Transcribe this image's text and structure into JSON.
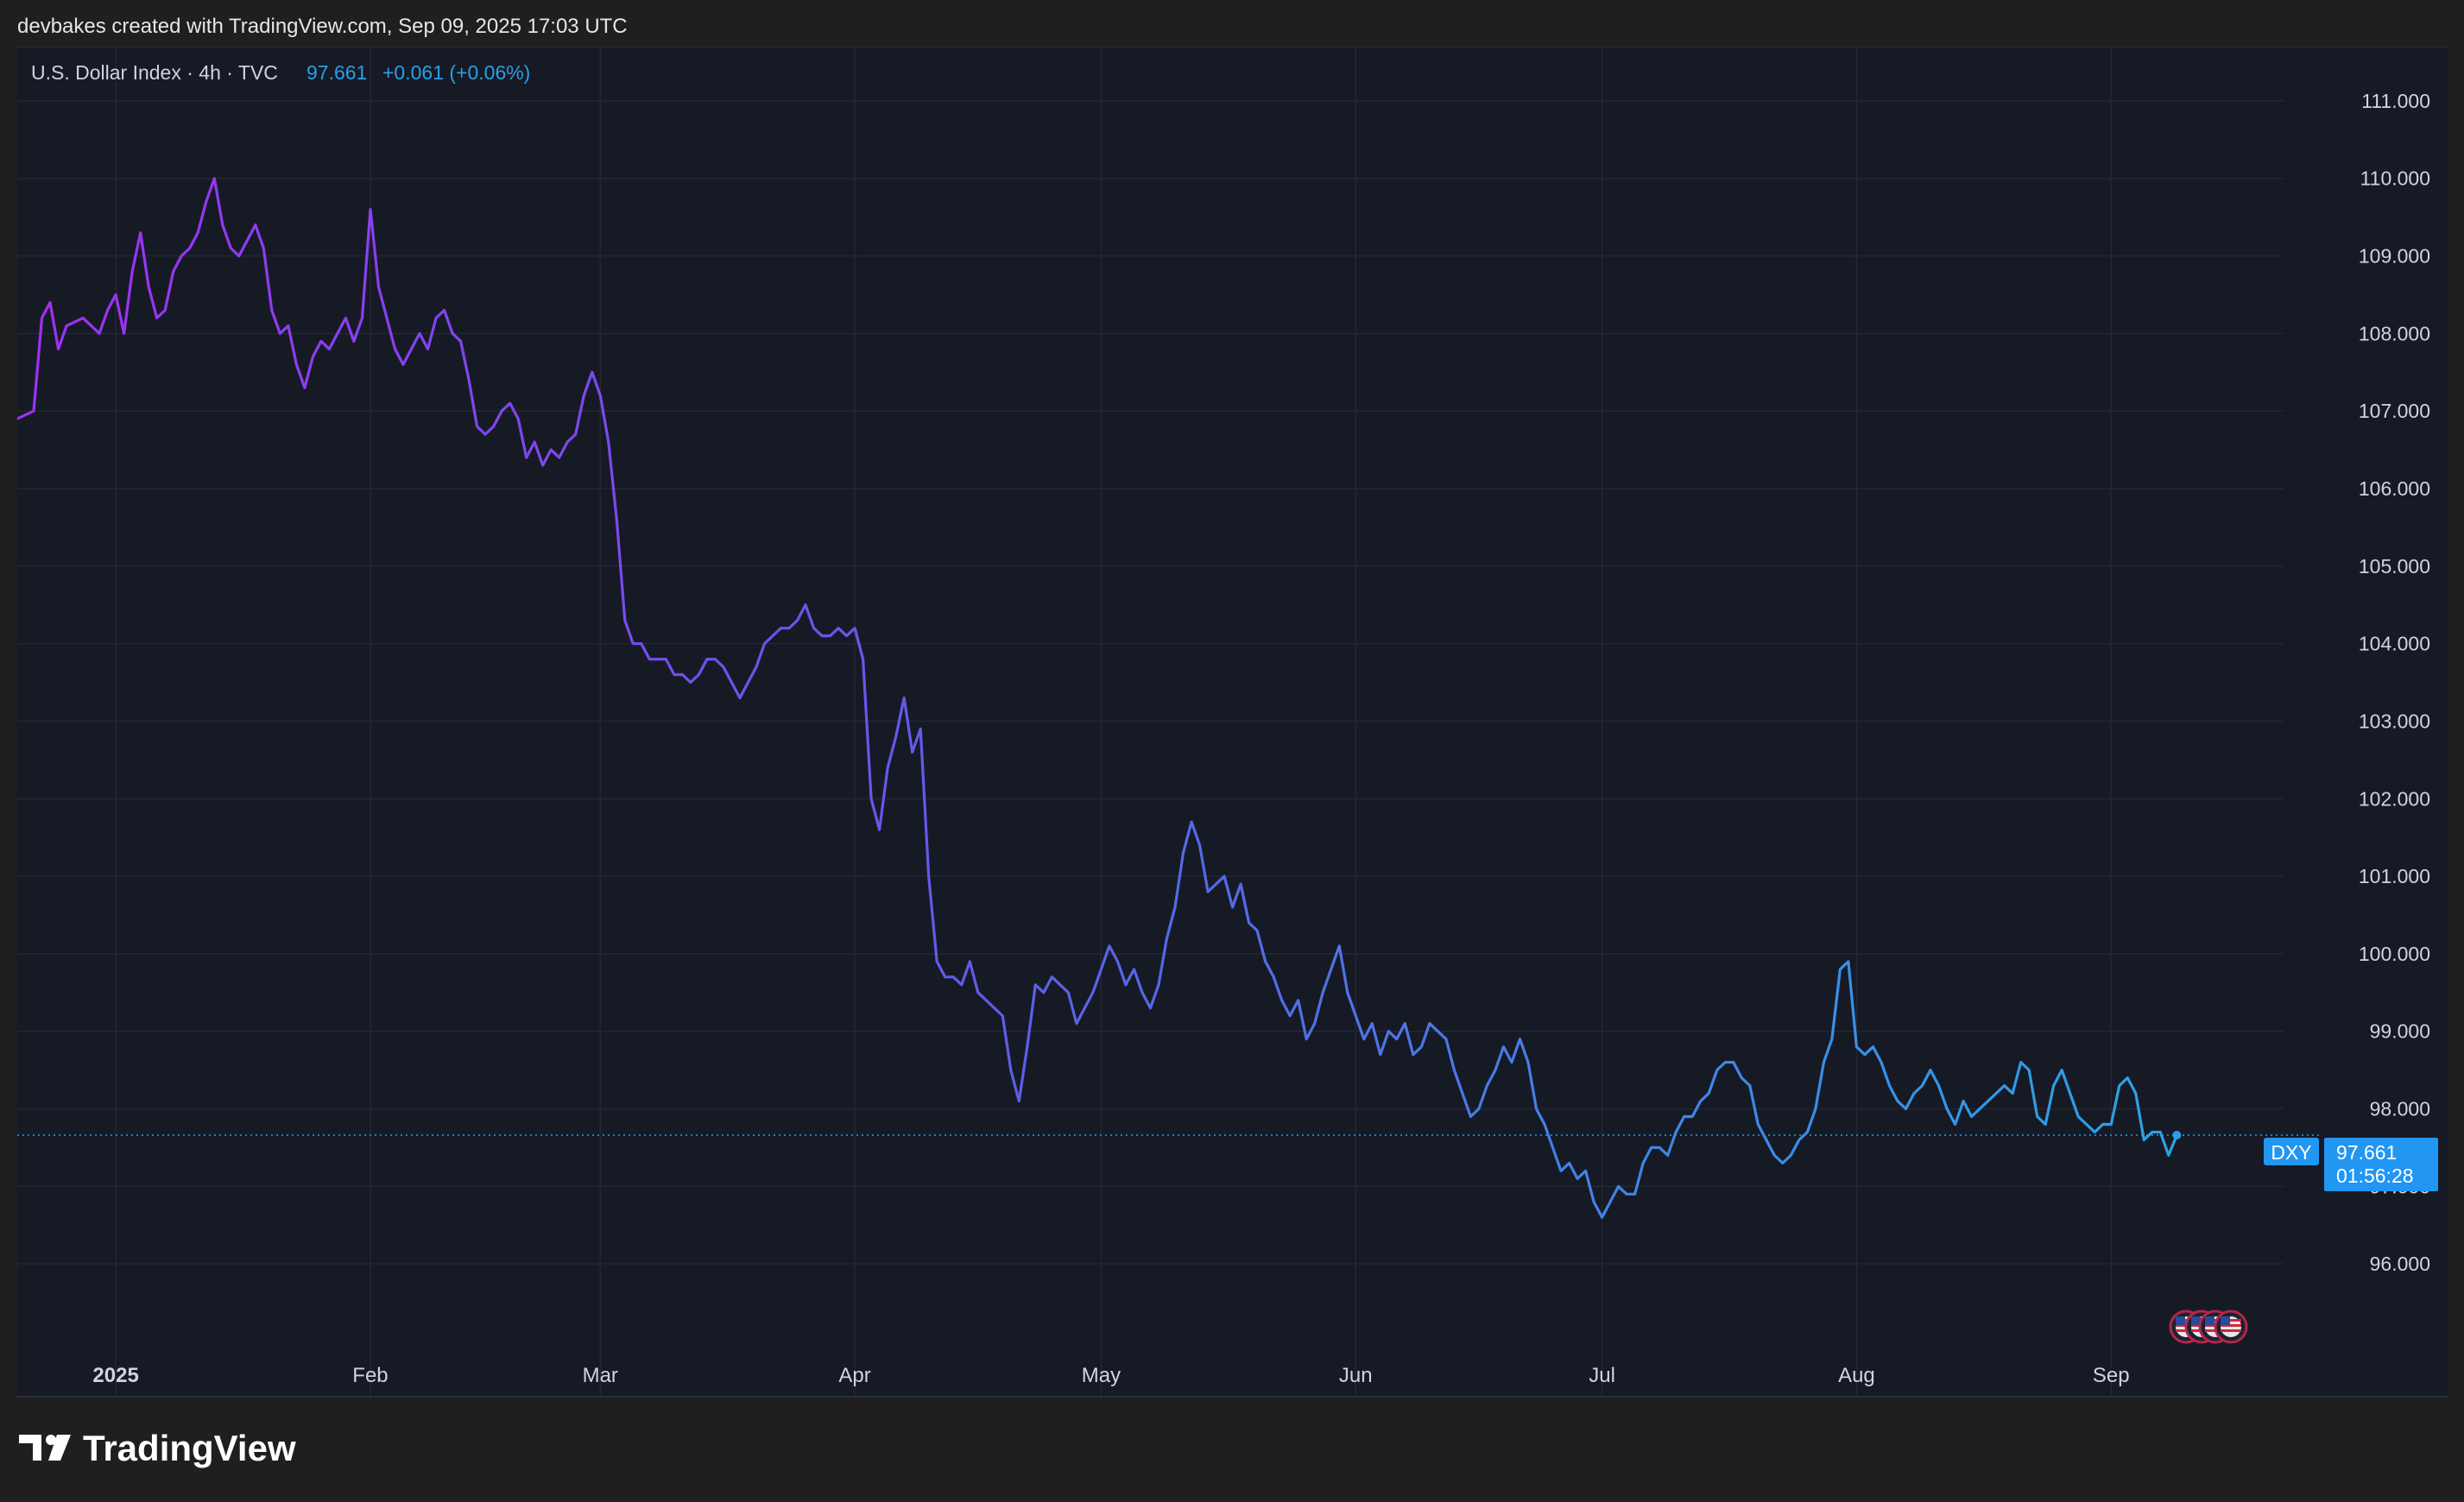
{
  "header": {
    "credit": "devbakes created with TradingView.com, Sep 09, 2025 17:03 UTC"
  },
  "legend": {
    "symbol": "U.S. Dollar Index · 4h · TVC",
    "last": "97.661",
    "change": "+0.061 (+0.06%)"
  },
  "price_tag": {
    "ticker": "DXY",
    "price": "97.661",
    "countdown": "01:56:28"
  },
  "brand": {
    "name": "TradingView"
  },
  "colors": {
    "page_bg": "#1f1f1f",
    "chart_bg": "#161a25",
    "grid": "#232733",
    "text": "#d1d4dc",
    "accent": "#2a9fe8",
    "line_start": "#a12ff4",
    "line_mid": "#5e5de8",
    "line_end": "#2aa3e6"
  },
  "chart_data": {
    "type": "line",
    "title": "U.S. Dollar Index · 4h · TVC",
    "y_axis_side": "right",
    "ylim": [
      95.0,
      111.7
    ],
    "yticks": [
      96,
      97,
      98,
      99,
      100,
      101,
      102,
      103,
      104,
      105,
      106,
      107,
      108,
      109,
      110,
      111
    ],
    "ytick_labels": [
      "96.000",
      "97.000",
      "98.000",
      "99.000",
      "100.000",
      "101.000",
      "102.000",
      "103.000",
      "104.000",
      "105.000",
      "106.000",
      "107.000",
      "108.000",
      "109.000",
      "110.000",
      "111.000"
    ],
    "xlim": [
      "2024-12-20",
      "2025-09-22"
    ],
    "xticks": [
      "2025-01-01",
      "2025-02-01",
      "2025-03-01",
      "2025-04-01",
      "2025-05-01",
      "2025-06-01",
      "2025-07-01",
      "2025-08-01",
      "2025-09-01"
    ],
    "xtick_labels": [
      "2025",
      "Feb",
      "Mar",
      "Apr",
      "May",
      "Jun",
      "Jul",
      "Aug",
      "Sep"
    ],
    "grid": true,
    "last_value": 97.661,
    "series": [
      {
        "points": [
          [
            "2024-12-20",
            106.9
          ],
          [
            "2024-12-22",
            107.0
          ],
          [
            "2024-12-23",
            108.2
          ],
          [
            "2024-12-24",
            108.4
          ],
          [
            "2024-12-25",
            107.8
          ],
          [
            "2024-12-26",
            108.1
          ],
          [
            "2024-12-28",
            108.2
          ],
          [
            "2024-12-30",
            108.0
          ],
          [
            "2024-12-31",
            108.3
          ],
          [
            "2025-01-01",
            108.5
          ],
          [
            "2025-01-02",
            108.0
          ],
          [
            "2025-01-03",
            108.8
          ],
          [
            "2025-01-04",
            109.3
          ],
          [
            "2025-01-05",
            108.6
          ],
          [
            "2025-01-06",
            108.2
          ],
          [
            "2025-01-07",
            108.3
          ],
          [
            "2025-01-08",
            108.8
          ],
          [
            "2025-01-09",
            109.0
          ],
          [
            "2025-01-10",
            109.1
          ],
          [
            "2025-01-11",
            109.3
          ],
          [
            "2025-01-12",
            109.7
          ],
          [
            "2025-01-13",
            110.0
          ],
          [
            "2025-01-14",
            109.4
          ],
          [
            "2025-01-15",
            109.1
          ],
          [
            "2025-01-16",
            109.0
          ],
          [
            "2025-01-17",
            109.2
          ],
          [
            "2025-01-18",
            109.4
          ],
          [
            "2025-01-19",
            109.1
          ],
          [
            "2025-01-20",
            108.3
          ],
          [
            "2025-01-21",
            108.0
          ],
          [
            "2025-01-22",
            108.1
          ],
          [
            "2025-01-23",
            107.6
          ],
          [
            "2025-01-24",
            107.3
          ],
          [
            "2025-01-25",
            107.7
          ],
          [
            "2025-01-26",
            107.9
          ],
          [
            "2025-01-27",
            107.8
          ],
          [
            "2025-01-28",
            108.0
          ],
          [
            "2025-01-29",
            108.2
          ],
          [
            "2025-01-30",
            107.9
          ],
          [
            "2025-01-31",
            108.2
          ],
          [
            "2025-02-01",
            109.6
          ],
          [
            "2025-02-02",
            108.6
          ],
          [
            "2025-02-03",
            108.2
          ],
          [
            "2025-02-04",
            107.8
          ],
          [
            "2025-02-05",
            107.6
          ],
          [
            "2025-02-06",
            107.8
          ],
          [
            "2025-02-07",
            108.0
          ],
          [
            "2025-02-08",
            107.8
          ],
          [
            "2025-02-09",
            108.2
          ],
          [
            "2025-02-10",
            108.3
          ],
          [
            "2025-02-11",
            108.0
          ],
          [
            "2025-02-12",
            107.9
          ],
          [
            "2025-02-13",
            107.4
          ],
          [
            "2025-02-14",
            106.8
          ],
          [
            "2025-02-15",
            106.7
          ],
          [
            "2025-02-16",
            106.8
          ],
          [
            "2025-02-17",
            107.0
          ],
          [
            "2025-02-18",
            107.1
          ],
          [
            "2025-02-19",
            106.9
          ],
          [
            "2025-02-20",
            106.4
          ],
          [
            "2025-02-21",
            106.6
          ],
          [
            "2025-02-22",
            106.3
          ],
          [
            "2025-02-23",
            106.5
          ],
          [
            "2025-02-24",
            106.4
          ],
          [
            "2025-02-25",
            106.6
          ],
          [
            "2025-02-26",
            106.7
          ],
          [
            "2025-02-27",
            107.2
          ],
          [
            "2025-02-28",
            107.5
          ],
          [
            "2025-03-01",
            107.2
          ],
          [
            "2025-03-02",
            106.6
          ],
          [
            "2025-03-03",
            105.6
          ],
          [
            "2025-03-04",
            104.3
          ],
          [
            "2025-03-05",
            104.0
          ],
          [
            "2025-03-06",
            104.0
          ],
          [
            "2025-03-07",
            103.8
          ],
          [
            "2025-03-08",
            103.8
          ],
          [
            "2025-03-09",
            103.8
          ],
          [
            "2025-03-10",
            103.6
          ],
          [
            "2025-03-11",
            103.6
          ],
          [
            "2025-03-12",
            103.5
          ],
          [
            "2025-03-13",
            103.6
          ],
          [
            "2025-03-14",
            103.8
          ],
          [
            "2025-03-15",
            103.8
          ],
          [
            "2025-03-16",
            103.7
          ],
          [
            "2025-03-17",
            103.5
          ],
          [
            "2025-03-18",
            103.3
          ],
          [
            "2025-03-19",
            103.5
          ],
          [
            "2025-03-20",
            103.7
          ],
          [
            "2025-03-21",
            104.0
          ],
          [
            "2025-03-22",
            104.1
          ],
          [
            "2025-03-23",
            104.2
          ],
          [
            "2025-03-24",
            104.2
          ],
          [
            "2025-03-25",
            104.3
          ],
          [
            "2025-03-26",
            104.5
          ],
          [
            "2025-03-27",
            104.2
          ],
          [
            "2025-03-28",
            104.1
          ],
          [
            "2025-03-29",
            104.1
          ],
          [
            "2025-03-30",
            104.2
          ],
          [
            "2025-03-31",
            104.1
          ],
          [
            "2025-04-01",
            104.2
          ],
          [
            "2025-04-02",
            103.8
          ],
          [
            "2025-04-03",
            102.0
          ],
          [
            "2025-04-04",
            101.6
          ],
          [
            "2025-04-05",
            102.4
          ],
          [
            "2025-04-06",
            102.8
          ],
          [
            "2025-04-07",
            103.3
          ],
          [
            "2025-04-08",
            102.6
          ],
          [
            "2025-04-09",
            102.9
          ],
          [
            "2025-04-10",
            101.0
          ],
          [
            "2025-04-11",
            99.9
          ],
          [
            "2025-04-12",
            99.7
          ],
          [
            "2025-04-13",
            99.7
          ],
          [
            "2025-04-14",
            99.6
          ],
          [
            "2025-04-15",
            99.9
          ],
          [
            "2025-04-16",
            99.5
          ],
          [
            "2025-04-17",
            99.4
          ],
          [
            "2025-04-18",
            99.3
          ],
          [
            "2025-04-19",
            99.2
          ],
          [
            "2025-04-20",
            98.5
          ],
          [
            "2025-04-21",
            98.1
          ],
          [
            "2025-04-22",
            98.8
          ],
          [
            "2025-04-23",
            99.6
          ],
          [
            "2025-04-24",
            99.5
          ],
          [
            "2025-04-25",
            99.7
          ],
          [
            "2025-04-26",
            99.6
          ],
          [
            "2025-04-27",
            99.5
          ],
          [
            "2025-04-28",
            99.1
          ],
          [
            "2025-04-29",
            99.3
          ],
          [
            "2025-04-30",
            99.5
          ],
          [
            "2025-05-01",
            99.8
          ],
          [
            "2025-05-02",
            100.1
          ],
          [
            "2025-05-03",
            99.9
          ],
          [
            "2025-05-04",
            99.6
          ],
          [
            "2025-05-05",
            99.8
          ],
          [
            "2025-05-06",
            99.5
          ],
          [
            "2025-05-07",
            99.3
          ],
          [
            "2025-05-08",
            99.6
          ],
          [
            "2025-05-09",
            100.2
          ],
          [
            "2025-05-10",
            100.6
          ],
          [
            "2025-05-11",
            101.3
          ],
          [
            "2025-05-12",
            101.7
          ],
          [
            "2025-05-13",
            101.4
          ],
          [
            "2025-05-14",
            100.8
          ],
          [
            "2025-05-15",
            100.9
          ],
          [
            "2025-05-16",
            101.0
          ],
          [
            "2025-05-17",
            100.6
          ],
          [
            "2025-05-18",
            100.9
          ],
          [
            "2025-05-19",
            100.4
          ],
          [
            "2025-05-20",
            100.3
          ],
          [
            "2025-05-21",
            99.9
          ],
          [
            "2025-05-22",
            99.7
          ],
          [
            "2025-05-23",
            99.4
          ],
          [
            "2025-05-24",
            99.2
          ],
          [
            "2025-05-25",
            99.4
          ],
          [
            "2025-05-26",
            98.9
          ],
          [
            "2025-05-27",
            99.1
          ],
          [
            "2025-05-28",
            99.5
          ],
          [
            "2025-05-29",
            99.8
          ],
          [
            "2025-05-30",
            100.1
          ],
          [
            "2025-05-31",
            99.5
          ],
          [
            "2025-06-01",
            99.2
          ],
          [
            "2025-06-02",
            98.9
          ],
          [
            "2025-06-03",
            99.1
          ],
          [
            "2025-06-04",
            98.7
          ],
          [
            "2025-06-05",
            99.0
          ],
          [
            "2025-06-06",
            98.9
          ],
          [
            "2025-06-07",
            99.1
          ],
          [
            "2025-06-08",
            98.7
          ],
          [
            "2025-06-09",
            98.8
          ],
          [
            "2025-06-10",
            99.1
          ],
          [
            "2025-06-11",
            99.0
          ],
          [
            "2025-06-12",
            98.9
          ],
          [
            "2025-06-13",
            98.5
          ],
          [
            "2025-06-14",
            98.2
          ],
          [
            "2025-06-15",
            97.9
          ],
          [
            "2025-06-16",
            98.0
          ],
          [
            "2025-06-17",
            98.3
          ],
          [
            "2025-06-18",
            98.5
          ],
          [
            "2025-06-19",
            98.8
          ],
          [
            "2025-06-20",
            98.6
          ],
          [
            "2025-06-21",
            98.9
          ],
          [
            "2025-06-22",
            98.6
          ],
          [
            "2025-06-23",
            98.0
          ],
          [
            "2025-06-24",
            97.8
          ],
          [
            "2025-06-25",
            97.5
          ],
          [
            "2025-06-26",
            97.2
          ],
          [
            "2025-06-27",
            97.3
          ],
          [
            "2025-06-28",
            97.1
          ],
          [
            "2025-06-29",
            97.2
          ],
          [
            "2025-06-30",
            96.8
          ],
          [
            "2025-07-01",
            96.6
          ],
          [
            "2025-07-02",
            96.8
          ],
          [
            "2025-07-03",
            97.0
          ],
          [
            "2025-07-04",
            96.9
          ],
          [
            "2025-07-05",
            96.9
          ],
          [
            "2025-07-06",
            97.3
          ],
          [
            "2025-07-07",
            97.5
          ],
          [
            "2025-07-08",
            97.5
          ],
          [
            "2025-07-09",
            97.4
          ],
          [
            "2025-07-10",
            97.7
          ],
          [
            "2025-07-11",
            97.9
          ],
          [
            "2025-07-12",
            97.9
          ],
          [
            "2025-07-13",
            98.1
          ],
          [
            "2025-07-14",
            98.2
          ],
          [
            "2025-07-15",
            98.5
          ],
          [
            "2025-07-16",
            98.6
          ],
          [
            "2025-07-17",
            98.6
          ],
          [
            "2025-07-18",
            98.4
          ],
          [
            "2025-07-19",
            98.3
          ],
          [
            "2025-07-20",
            97.8
          ],
          [
            "2025-07-21",
            97.6
          ],
          [
            "2025-07-22",
            97.4
          ],
          [
            "2025-07-23",
            97.3
          ],
          [
            "2025-07-24",
            97.4
          ],
          [
            "2025-07-25",
            97.6
          ],
          [
            "2025-07-26",
            97.7
          ],
          [
            "2025-07-27",
            98.0
          ],
          [
            "2025-07-28",
            98.6
          ],
          [
            "2025-07-29",
            98.9
          ],
          [
            "2025-07-30",
            99.8
          ],
          [
            "2025-07-31",
            99.9
          ],
          [
            "2025-08-01",
            98.8
          ],
          [
            "2025-08-02",
            98.7
          ],
          [
            "2025-08-03",
            98.8
          ],
          [
            "2025-08-04",
            98.6
          ],
          [
            "2025-08-05",
            98.3
          ],
          [
            "2025-08-06",
            98.1
          ],
          [
            "2025-08-07",
            98.0
          ],
          [
            "2025-08-08",
            98.2
          ],
          [
            "2025-08-09",
            98.3
          ],
          [
            "2025-08-10",
            98.5
          ],
          [
            "2025-08-11",
            98.3
          ],
          [
            "2025-08-12",
            98.0
          ],
          [
            "2025-08-13",
            97.8
          ],
          [
            "2025-08-14",
            98.1
          ],
          [
            "2025-08-15",
            97.9
          ],
          [
            "2025-08-16",
            98.0
          ],
          [
            "2025-08-17",
            98.1
          ],
          [
            "2025-08-18",
            98.2
          ],
          [
            "2025-08-19",
            98.3
          ],
          [
            "2025-08-20",
            98.2
          ],
          [
            "2025-08-21",
            98.6
          ],
          [
            "2025-08-22",
            98.5
          ],
          [
            "2025-08-23",
            97.9
          ],
          [
            "2025-08-24",
            97.8
          ],
          [
            "2025-08-25",
            98.3
          ],
          [
            "2025-08-26",
            98.5
          ],
          [
            "2025-08-27",
            98.2
          ],
          [
            "2025-08-28",
            97.9
          ],
          [
            "2025-08-29",
            97.8
          ],
          [
            "2025-08-30",
            97.7
          ],
          [
            "2025-08-31",
            97.8
          ],
          [
            "2025-09-01",
            97.8
          ],
          [
            "2025-09-02",
            98.3
          ],
          [
            "2025-09-03",
            98.4
          ],
          [
            "2025-09-04",
            98.2
          ],
          [
            "2025-09-05",
            97.6
          ],
          [
            "2025-09-06",
            97.7
          ],
          [
            "2025-09-07",
            97.7
          ],
          [
            "2025-09-08",
            97.4
          ],
          [
            "2025-09-09",
            97.661
          ]
        ]
      }
    ]
  }
}
